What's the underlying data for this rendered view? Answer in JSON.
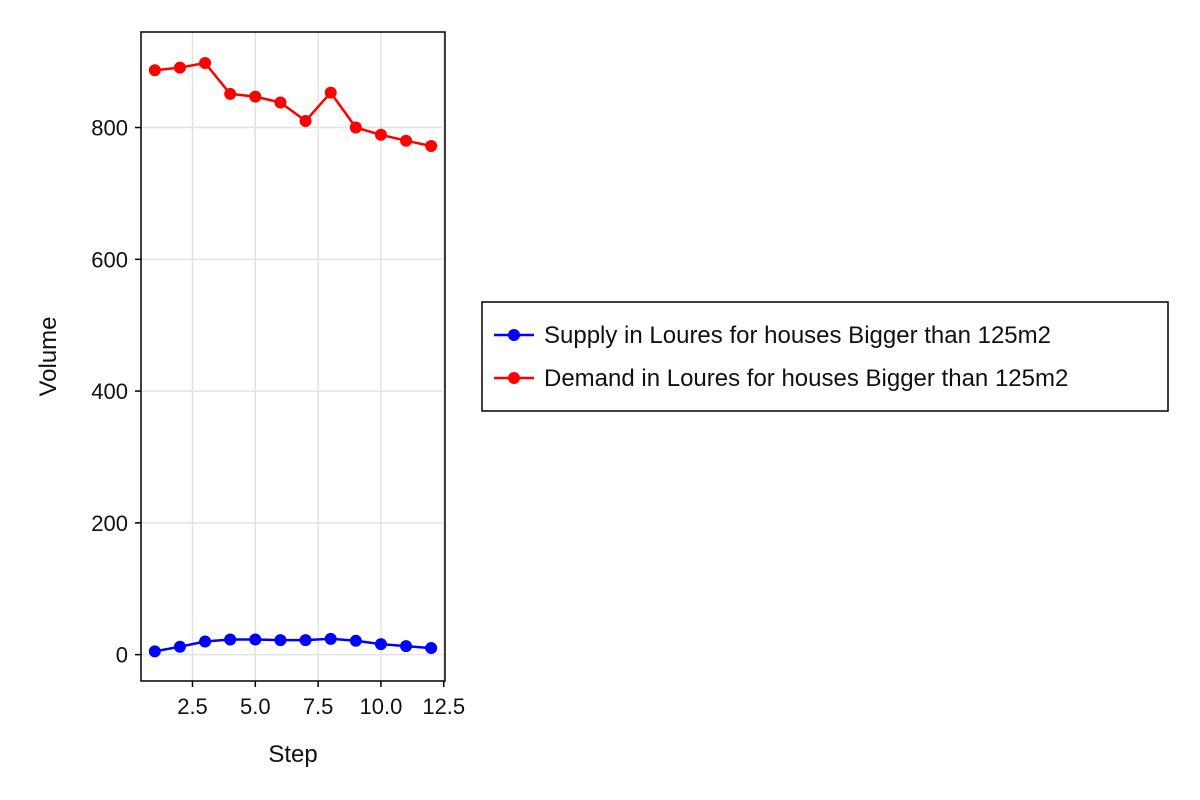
{
  "chart_data": {
    "type": "line",
    "title": "",
    "xlabel": "Step",
    "ylabel": "Volume",
    "xlim": [
      0.45,
      12.55
    ],
    "ylim": [
      -40,
      945
    ],
    "x_ticks": [
      2.5,
      5.0,
      7.5,
      10.0,
      12.5
    ],
    "x_tick_labels": [
      "2.5",
      "5.0",
      "7.5",
      "10.0",
      "12.5"
    ],
    "y_ticks": [
      0,
      200,
      400,
      600,
      800
    ],
    "y_tick_labels": [
      "0",
      "200",
      "400",
      "600",
      "800"
    ],
    "grid": true,
    "legend_position": "right",
    "x": [
      1,
      2,
      3,
      4,
      5,
      6,
      7,
      8,
      9,
      10,
      11,
      12
    ],
    "series": [
      {
        "name": "Supply in Loures for houses Bigger than 125m2",
        "color": "#0000ff",
        "values": [
          5,
          12,
          20,
          23,
          23,
          22,
          22,
          24,
          21,
          16,
          13,
          10
        ]
      },
      {
        "name": "Demand in Loures for houses Bigger than 125m2",
        "color": "#ff0000",
        "values": [
          887,
          891,
          898,
          851,
          847,
          838,
          810,
          853,
          800,
          789,
          780,
          772
        ]
      }
    ]
  }
}
